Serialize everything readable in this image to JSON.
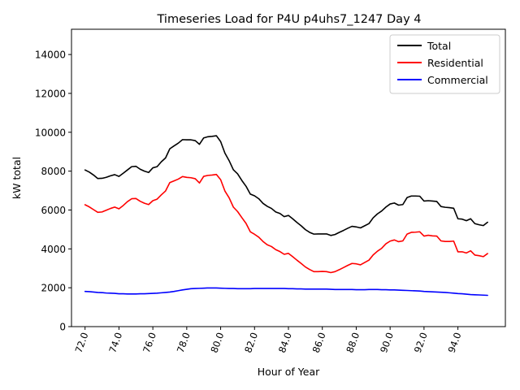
{
  "chart_data": {
    "type": "line",
    "title": "Timeseries Load for P4U p4uhs7_1247  Day 4",
    "xlabel": "Hour of Year",
    "ylabel": "kW total",
    "xlim": [
      71.2,
      96.8
    ],
    "ylim": [
      0,
      15300
    ],
    "x_ticks": [
      72,
      74,
      76,
      78,
      80,
      82,
      84,
      86,
      88,
      90,
      92,
      94
    ],
    "x_tick_labels": [
      "72.0",
      "74.0",
      "76.0",
      "78.0",
      "80.0",
      "82.0",
      "84.0",
      "86.0",
      "88.0",
      "90.0",
      "92.0",
      "94.0"
    ],
    "y_ticks": [
      0,
      2000,
      4000,
      6000,
      8000,
      10000,
      12000,
      14000
    ],
    "y_tick_labels": [
      "0",
      "2000",
      "4000",
      "6000",
      "8000",
      "10000",
      "12000",
      "14000"
    ],
    "grid": false,
    "legend_position": "top-right",
    "x": [
      72.0,
      72.25,
      72.5,
      72.75,
      73.0,
      73.25,
      73.5,
      73.75,
      74.0,
      74.25,
      74.5,
      74.75,
      75.0,
      75.25,
      75.5,
      75.75,
      76.0,
      76.25,
      76.5,
      76.75,
      77.0,
      77.25,
      77.5,
      77.75,
      78.0,
      78.25,
      78.5,
      78.75,
      79.0,
      79.25,
      79.5,
      79.75,
      80.0,
      80.25,
      80.5,
      80.75,
      81.0,
      81.25,
      81.5,
      81.75,
      82.0,
      82.25,
      82.5,
      82.75,
      83.0,
      83.25,
      83.5,
      83.75,
      84.0,
      84.25,
      84.5,
      84.75,
      85.0,
      85.25,
      85.5,
      85.75,
      86.0,
      86.25,
      86.5,
      86.75,
      87.0,
      87.25,
      87.5,
      87.75,
      88.0,
      88.25,
      88.5,
      88.75,
      89.0,
      89.25,
      89.5,
      89.75,
      90.0,
      90.25,
      90.5,
      90.75,
      91.0,
      91.25,
      91.5,
      91.75,
      92.0,
      92.25,
      92.5,
      92.75,
      93.0,
      93.25,
      93.5,
      93.75,
      94.0,
      94.25,
      94.5,
      94.75,
      95.0,
      95.25,
      95.5,
      95.75
    ],
    "series": [
      {
        "name": "Total",
        "color": "#000000",
        "values": [
          8060,
          7950,
          7800,
          7620,
          7630,
          7680,
          7760,
          7820,
          7730,
          7890,
          8060,
          8230,
          8250,
          8100,
          8000,
          7930,
          8170,
          8230,
          8480,
          8680,
          9150,
          9300,
          9440,
          9620,
          9610,
          9610,
          9570,
          9380,
          9710,
          9770,
          9790,
          9820,
          9520,
          8930,
          8540,
          8070,
          7860,
          7520,
          7220,
          6820,
          6730,
          6580,
          6340,
          6190,
          6080,
          5900,
          5820,
          5660,
          5720,
          5550,
          5360,
          5190,
          4990,
          4850,
          4760,
          4770,
          4770,
          4770,
          4690,
          4740,
          4850,
          4950,
          5060,
          5160,
          5130,
          5080,
          5190,
          5300,
          5600,
          5800,
          5950,
          6150,
          6310,
          6360,
          6250,
          6280,
          6640,
          6720,
          6720,
          6710,
          6460,
          6480,
          6460,
          6440,
          6180,
          6140,
          6120,
          6090,
          5550,
          5530,
          5450,
          5550,
          5300,
          5240,
          5200,
          5370
        ]
      },
      {
        "name": "Residential",
        "color": "#ff0000",
        "values": [
          6270,
          6160,
          6020,
          5880,
          5900,
          5990,
          6080,
          6150,
          6060,
          6230,
          6430,
          6580,
          6590,
          6450,
          6350,
          6280,
          6480,
          6560,
          6780,
          6980,
          7410,
          7500,
          7590,
          7720,
          7680,
          7660,
          7610,
          7390,
          7730,
          7780,
          7800,
          7830,
          7560,
          6980,
          6630,
          6150,
          5920,
          5610,
          5310,
          4880,
          4750,
          4600,
          4380,
          4210,
          4120,
          3960,
          3860,
          3720,
          3770,
          3600,
          3420,
          3250,
          3070,
          2940,
          2830,
          2830,
          2840,
          2830,
          2780,
          2830,
          2930,
          3040,
          3150,
          3250,
          3230,
          3180,
          3300,
          3420,
          3690,
          3880,
          4030,
          4260,
          4400,
          4460,
          4370,
          4410,
          4760,
          4850,
          4860,
          4880,
          4660,
          4700,
          4670,
          4660,
          4410,
          4380,
          4380,
          4400,
          3850,
          3850,
          3790,
          3900,
          3680,
          3650,
          3600,
          3760
        ]
      },
      {
        "name": "Commercial",
        "color": "#0000ff",
        "values": [
          1810,
          1800,
          1780,
          1760,
          1750,
          1730,
          1720,
          1710,
          1690,
          1690,
          1680,
          1680,
          1680,
          1690,
          1690,
          1700,
          1710,
          1720,
          1740,
          1760,
          1780,
          1810,
          1850,
          1890,
          1920,
          1950,
          1960,
          1970,
          1980,
          1990,
          1990,
          1990,
          1980,
          1970,
          1960,
          1960,
          1950,
          1950,
          1950,
          1950,
          1960,
          1960,
          1960,
          1960,
          1960,
          1960,
          1960,
          1960,
          1950,
          1950,
          1940,
          1940,
          1930,
          1930,
          1930,
          1930,
          1930,
          1930,
          1920,
          1910,
          1910,
          1910,
          1910,
          1910,
          1900,
          1900,
          1900,
          1910,
          1910,
          1910,
          1900,
          1900,
          1890,
          1890,
          1880,
          1870,
          1860,
          1850,
          1840,
          1830,
          1810,
          1800,
          1790,
          1780,
          1770,
          1760,
          1740,
          1720,
          1700,
          1690,
          1670,
          1650,
          1640,
          1630,
          1620,
          1610
        ]
      }
    ]
  }
}
